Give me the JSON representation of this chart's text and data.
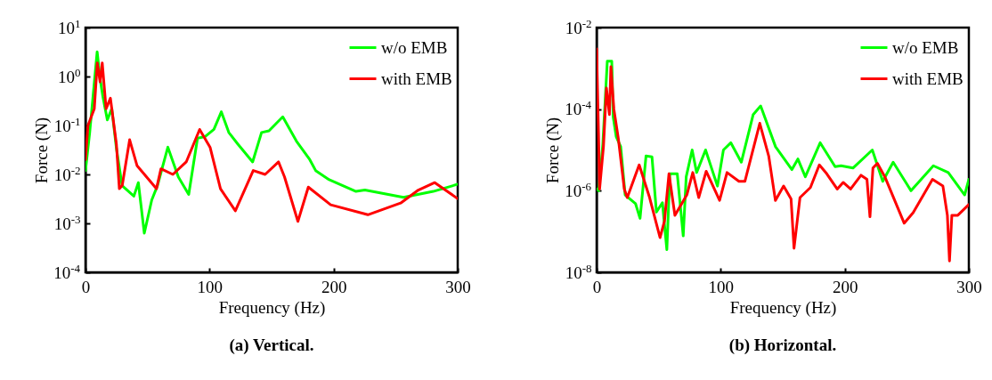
{
  "chart_data": [
    {
      "type": "line",
      "title": "(a) Vertical.",
      "xlabel": "Frequency (Hz)",
      "ylabel": "Force (N)",
      "log": true,
      "legend": "top right",
      "xlim": [
        0,
        300
      ],
      "xticks": [
        0,
        100,
        200,
        300
      ],
      "ylim": [
        0.0001,
        10
      ],
      "yticks": [
        {
          "value": 0.0001,
          "label": "10$^{-4}$"
        },
        {
          "value": 0.001,
          "label": "10$^{-3}$"
        },
        {
          "value": 0.01,
          "label": "10$^{-2}$"
        },
        {
          "value": 0.1,
          "label": "10$^{-1}$"
        },
        {
          "value": 1,
          "label": "10$^{0}$"
        },
        {
          "value": 10,
          "label": "10$^{1}$"
        }
      ],
      "series": [
        {
          "name": "w/o EMB",
          "color": "#00ff00",
          "x": [
            0,
            3.4,
            9.4,
            11.8,
            14,
            17.6,
            21.2,
            24.8,
            29.5,
            39,
            42.6,
            47.4,
            53.4,
            58,
            66.4,
            74.8,
            83.2,
            90.3,
            96.3,
            103.5,
            109.5,
            115.5,
            122.7,
            134.7,
            141.9,
            147.9,
            159,
            170,
            180.8,
            185.5,
            196.4,
            218,
            225.2,
            256.3,
            280.3,
            300
          ],
          "values": [
            0.012,
            0.072,
            3.2,
            0.89,
            0.39,
            0.13,
            0.22,
            0.036,
            0.0059,
            0.0036,
            0.0068,
            0.00063,
            0.003,
            0.0059,
            0.036,
            0.0089,
            0.0039,
            0.055,
            0.059,
            0.083,
            0.19,
            0.072,
            0.042,
            0.018,
            0.072,
            0.078,
            0.15,
            0.048,
            0.02,
            0.012,
            0.0078,
            0.0045,
            0.0048,
            0.0034,
            0.0045,
            0.0063
          ]
        },
        {
          "name": "with EMB",
          "color": "#ff0000",
          "x": [
            0,
            2,
            7.1,
            9.5,
            11.8,
            13.5,
            16.6,
            20.1,
            24.9,
            27.3,
            29.6,
            35.6,
            41.6,
            57.2,
            60.8,
            70.4,
            81.2,
            92,
            100.4,
            108.8,
            120.8,
            135.2,
            144.8,
            155.6,
            160.4,
            171.2,
            179.6,
            197.6,
            227.6,
            254,
            268.3,
            281.5,
            300
          ],
          "values": [
            0.02,
            0.1,
            0.22,
            1.9,
            0.78,
            1.9,
            0.22,
            0.36,
            0.042,
            0.0051,
            0.0059,
            0.051,
            0.015,
            0.0051,
            0.013,
            0.01,
            0.018,
            0.083,
            0.036,
            0.0051,
            0.0018,
            0.012,
            0.01,
            0.018,
            0.0089,
            0.0011,
            0.0055,
            0.0024,
            0.0015,
            0.0026,
            0.0048,
            0.0068,
            0.0032
          ]
        }
      ]
    },
    {
      "type": "line",
      "title": "(b) Horizontal.",
      "xlabel": "Frequency (Hz)",
      "ylabel": "Force (N)",
      "log": true,
      "legend": "top right",
      "xlim": [
        0,
        300
      ],
      "xticks": [
        0,
        100,
        200,
        300
      ],
      "ylim": [
        1e-08,
        0.01
      ],
      "yticks": [
        {
          "value": 1e-08,
          "label": "10$^{-8}$"
        },
        {
          "value": 1e-06,
          "label": "10$^{-6}$"
        },
        {
          "value": 0.0001,
          "label": "10$^{-4}$"
        },
        {
          "value": 0.01,
          "label": "10$^{-2}$"
        }
      ],
      "series": [
        {
          "name": "w/o EMB",
          "color": "#00ff00",
          "x": [
            0.5,
            1.7,
            5,
            8.6,
            12.2,
            13.4,
            15.8,
            19.4,
            23,
            31.4,
            35,
            39.8,
            44.6,
            48.2,
            53,
            56.6,
            59,
            65,
            69.8,
            72.2,
            77,
            80.6,
            87.8,
            97.4,
            102.2,
            108.2,
            116.6,
            126.2,
            132.2,
            144.2,
            157.4,
            162.2,
            168.2,
            180.2,
            192.2,
            197,
            206.6,
            222.2,
            230.6,
            239,
            253.4,
            271.4,
            283.4,
            296.6,
            300
          ],
          "values": [
            1.1e-06,
            1e-06,
            1.4e-05,
            0.0015,
            0.0015,
            6.3e-05,
            2.1e-05,
            1.2e-05,
            7.9e-07,
            4.8e-07,
            2.1e-07,
            7.1e-06,
            6.8e-06,
            3e-07,
            5.1e-07,
            3.6e-08,
            2.6e-06,
            2.6e-06,
            7.8e-08,
            2.2e-06,
            1e-05,
            2.8e-06,
            1e-05,
            1.3e-06,
            1e-05,
            1.5e-05,
            5e-06,
            7.4e-05,
            0.00012,
            1.2e-05,
            3.3e-06,
            6e-06,
            2.2e-06,
            1.5e-05,
            3.9e-06,
            4.1e-06,
            3.6e-06,
            1e-05,
            1.7e-06,
            5e-06,
            1e-06,
            4.1e-06,
            2.8e-06,
            7.9e-07,
            1.9e-06
          ]
        },
        {
          "name": "with EMB",
          "color": "#ff0000",
          "x": [
            0,
            1.5,
            2.4,
            5.5,
            7.9,
            10.3,
            11.5,
            13.9,
            17.5,
            22.3,
            24.7,
            34.3,
            42.7,
            51.1,
            54.7,
            58.3,
            63.1,
            72.7,
            77.5,
            82.3,
            88.3,
            99.1,
            105.1,
            114.7,
            119.5,
            131.5,
            138.7,
            144.1,
            150.7,
            156.7,
            159.1,
            163.9,
            172.3,
            179.5,
            185.5,
            193.9,
            198.7,
            204.7,
            213.1,
            217.9,
            220.3,
            222.7,
            226.3,
            232.3,
            247.9,
            255.1,
            270.7,
            279.1,
            282.7,
            284.4,
            286.3,
            291.1,
            300
          ],
          "values": [
            0.003,
            2.7e-05,
            1.1e-06,
            1.2e-05,
            0.00033,
            7.4e-05,
            0.0011,
            0.0001,
            1.9e-05,
            1.1e-06,
            6.8e-07,
            4.3e-06,
            6.8e-07,
            7.1e-08,
            1.8e-07,
            2.6e-06,
            2.5e-07,
            7.9e-07,
            2.8e-06,
            6.8e-07,
            3e-06,
            5.8e-07,
            2.8e-06,
            1.7e-06,
            1.7e-06,
            4.5e-05,
            7.1e-06,
            5.8e-07,
            1.3e-06,
            6.3e-07,
            3.9e-08,
            6.8e-07,
            1.2e-06,
            4.3e-06,
            2.6e-06,
            1.1e-06,
            1.6e-06,
            1.1e-06,
            2.4e-06,
            1.9e-06,
            2.3e-07,
            3.6e-06,
            4.7e-06,
            2.2e-06,
            1.6e-07,
            2.9e-07,
            1.9e-06,
            1.3e-06,
            2.5e-07,
            1.9e-08,
            2.5e-07,
            2.5e-07,
            4.6e-07
          ]
        }
      ]
    }
  ]
}
